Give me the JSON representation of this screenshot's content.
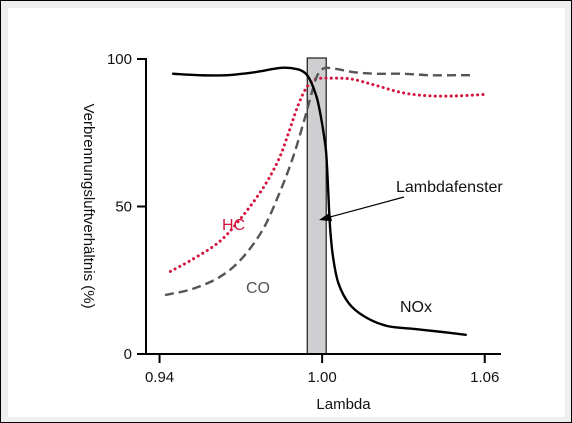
{
  "chart_data": {
    "type": "line",
    "xlabel": "Lambda",
    "ylabel": "Verbrennungsluftverhältnis (%)",
    "xlim": [
      0.935,
      1.066
    ],
    "ylim": [
      0,
      100
    ],
    "x_ticks": [
      {
        "value": 0.94,
        "label": "0.94"
      },
      {
        "value": 1.0,
        "label": "1.00"
      },
      {
        "value": 1.06,
        "label": "1.06"
      }
    ],
    "y_ticks": [
      {
        "value": 0,
        "label": "0"
      },
      {
        "value": 50,
        "label": "50"
      },
      {
        "value": 100,
        "label": "100"
      }
    ],
    "window": {
      "x_from": 0.9945,
      "x_to": 1.0015,
      "label": "Lambdafenster"
    },
    "grid": false,
    "series": [
      {
        "name": "HC",
        "color": "#d4143c",
        "style": "dotted",
        "x": [
          0.944,
          0.952,
          0.962,
          0.97,
          0.978,
          0.984,
          0.988,
          0.991,
          0.994,
          0.997,
          1.0,
          1.003,
          1.007,
          1.012,
          1.02,
          1.03,
          1.04,
          1.05,
          1.06
        ],
        "values": [
          28,
          32,
          38,
          46,
          56,
          66,
          76,
          84,
          90,
          93,
          93.5,
          93.5,
          93.5,
          93,
          91,
          88.5,
          87.5,
          87.5,
          88
        ]
      },
      {
        "name": "CO",
        "color": "#555555",
        "style": "dashed",
        "x": [
          0.942,
          0.952,
          0.962,
          0.97,
          0.978,
          0.984,
          0.989,
          0.993,
          0.996,
          0.998,
          1.0,
          1.002,
          1.006,
          1.012,
          1.02,
          1.03,
          1.04,
          1.05,
          1.055
        ],
        "values": [
          20,
          22,
          26,
          32,
          42,
          54,
          66,
          78,
          88,
          94,
          96.5,
          97,
          96.5,
          95.5,
          95,
          95,
          94.5,
          94.5,
          94.5
        ]
      },
      {
        "name": "NOx",
        "color": "#000000",
        "style": "solid",
        "x": [
          0.945,
          0.955,
          0.965,
          0.975,
          0.985,
          0.991,
          0.994,
          0.996,
          0.998,
          0.999,
          1.0,
          1.001,
          1.0015,
          1.002,
          1.0025,
          1.003,
          1.004,
          1.006,
          1.01,
          1.016,
          1.024,
          1.034,
          1.044,
          1.053
        ],
        "values": [
          95,
          94.5,
          94.5,
          95.5,
          97,
          96.5,
          95,
          92,
          87,
          83,
          78,
          72,
          68,
          60,
          50,
          42,
          33,
          24,
          17,
          12.5,
          9.5,
          8.5,
          7.5,
          6.5
        ]
      }
    ],
    "labels": [
      {
        "series": "HC",
        "text": "HC"
      },
      {
        "series": "CO",
        "text": "CO"
      },
      {
        "series": "NOx",
        "text": "NOx"
      }
    ]
  }
}
